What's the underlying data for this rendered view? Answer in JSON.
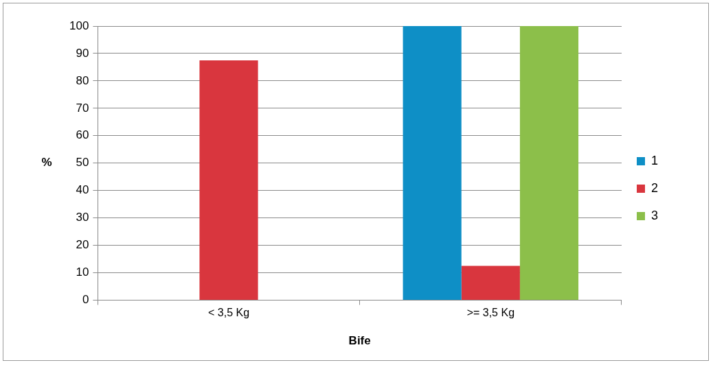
{
  "chart_data": {
    "type": "bar",
    "xlabel": "Bife",
    "ylabel": "%",
    "categories": [
      "< 3,5 Kg",
      ">= 3,5 Kg"
    ],
    "series": [
      {
        "name": "1",
        "color": "#0e8fc6",
        "values": [
          0,
          100
        ]
      },
      {
        "name": "2",
        "color": "#d9363e",
        "values": [
          87.5,
          12.5
        ]
      },
      {
        "name": "3",
        "color": "#8cbf4a",
        "values": [
          0,
          100
        ]
      }
    ],
    "ylim": [
      0,
      100
    ],
    "yticks": [
      0,
      10,
      20,
      30,
      40,
      50,
      60,
      70,
      80,
      90,
      100
    ],
    "grid": "y",
    "legend": "right"
  }
}
